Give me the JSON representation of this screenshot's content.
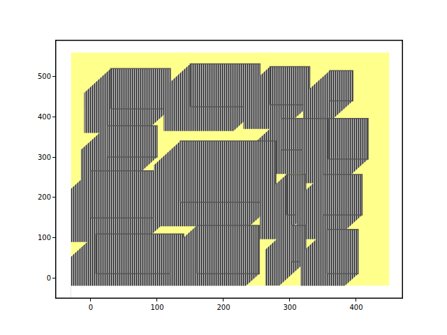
{
  "chart_data": {
    "type": "boxes",
    "xlim": [
      -52.6,
      469.5
    ],
    "ylim": [
      -50.3,
      590
    ],
    "xticks": [
      0,
      100,
      200,
      300,
      400
    ],
    "yticks": [
      0,
      100,
      200,
      300,
      400,
      500
    ],
    "grid": false,
    "area": {
      "x": [
        -30,
        450
      ],
      "y": [
        -20,
        560
      ],
      "color": "#ffff8c"
    },
    "color": "#555555",
    "boxes": [
      {
        "x": [
          30,
          120
        ],
        "y": [
          420,
          520
        ]
      },
      {
        "x": [
          150,
          255
        ],
        "y": [
          425,
          532
        ]
      },
      {
        "x": [
          270,
          330
        ],
        "y": [
          430,
          525
        ]
      },
      {
        "x": [
          360,
          395
        ],
        "y": [
          440,
          515
        ]
      },
      {
        "x": [
          25,
          100
        ],
        "y": [
          300,
          378
        ]
      },
      {
        "x": [
          287,
          358
        ],
        "y": [
          318,
          396
        ]
      },
      {
        "x": [
          358,
          418
        ],
        "y": [
          295,
          396
        ]
      },
      {
        "x": [
          0,
          119
        ],
        "y": [
          149,
          266
        ]
      },
      {
        "x": [
          135,
          279
        ],
        "y": [
          188,
          340
        ]
      },
      {
        "x": [
          295,
          324
        ],
        "y": [
          156,
          257
        ]
      },
      {
        "x": [
          350,
          409
        ],
        "y": [
          156,
          257
        ]
      },
      {
        "x": [
          8,
          140
        ],
        "y": [
          10,
          109
        ]
      },
      {
        "x": [
          160,
          254
        ],
        "y": [
          10,
          130
        ]
      },
      {
        "x": [
          303,
          324
        ],
        "y": [
          40,
          130
        ]
      },
      {
        "x": [
          356,
          403
        ],
        "y": [
          10,
          120
        ]
      }
    ]
  }
}
